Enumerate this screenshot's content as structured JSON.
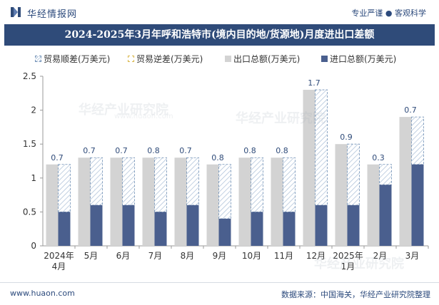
{
  "brand": {
    "name": "华经情报网",
    "tagline": "专业严谨 ● 客观科学"
  },
  "chart_data": {
    "type": "bar",
    "title": "2024-2025年3月年呼和浩特市(境内目的地/货源地)月度进出口差额",
    "categories": [
      "2024年\n4月",
      "5月",
      "6月",
      "7月",
      "8月",
      "9月",
      "10月",
      "11月",
      "12月",
      "2025年\n1月",
      "2月",
      "3月"
    ],
    "series": [
      {
        "name": "贸易顺差(万美元)",
        "values": [
          0.7,
          0.7,
          0.7,
          0.8,
          0.7,
          0.8,
          0.8,
          0.8,
          1.7,
          0.9,
          0.3,
          0.7
        ]
      },
      {
        "name": "贸易逆差(万美元)",
        "values": [
          0,
          0,
          0,
          0,
          0,
          0,
          0,
          0,
          0,
          0,
          0,
          0
        ]
      },
      {
        "name": "出口总额(万美元)",
        "values": [
          1.2,
          1.3,
          1.3,
          1.3,
          1.3,
          1.2,
          1.3,
          1.3,
          2.3,
          1.5,
          1.2,
          1.9
        ]
      },
      {
        "name": "进口总额(万美元)",
        "values": [
          0.5,
          0.6,
          0.6,
          0.5,
          0.6,
          0.4,
          0.5,
          0.5,
          0.6,
          0.6,
          0.9,
          1.2
        ]
      }
    ],
    "data_labels": [
      "0.7",
      "0.7",
      "0.7",
      "0.8",
      "0.7",
      "0.8",
      "0.8",
      "0.8",
      "1.7",
      "0.9",
      "0.3",
      "0.7"
    ],
    "ylim": [
      0,
      2.5
    ],
    "yticks": [
      0,
      0.5,
      1,
      1.5,
      2,
      2.5
    ],
    "ytick_labels": [
      "0",
      "0.5",
      "1",
      "1.5",
      "2",
      "2.5"
    ],
    "colors": {
      "surplus_line": "#6f8fb5",
      "surplus_hatch": "#a8bdd6",
      "deficit": "#d8b544",
      "export": "#d3d3d3",
      "import": "#4a5f8e",
      "axis": "#999999"
    },
    "legend_position": "top",
    "grid": false
  },
  "footer": {
    "url": "www.huaon.com",
    "source": "数据来源：中国海关，华经产业研究院整理"
  },
  "watermark": {
    "text": "华经产业研究院",
    "sub": "www.huaon.com"
  }
}
